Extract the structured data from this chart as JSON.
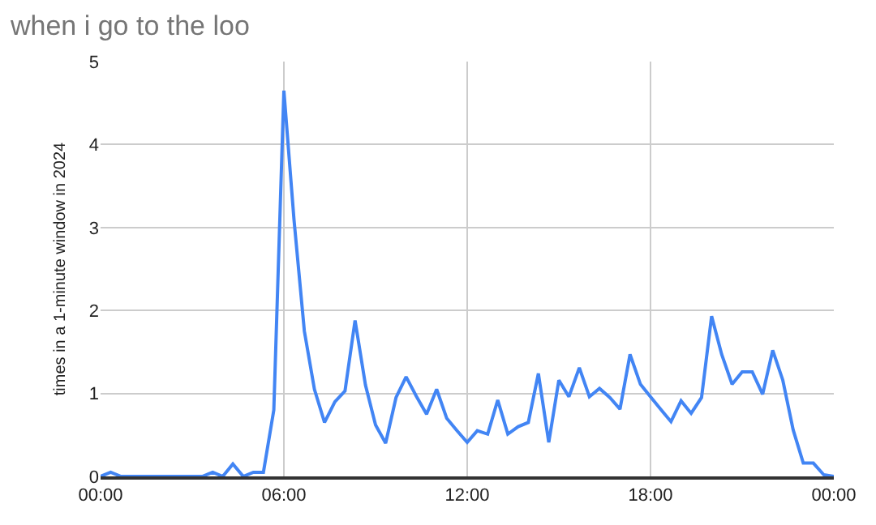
{
  "chart_data": {
    "type": "line",
    "title": "when i go to the loo",
    "ylabel": "times in a 1-minute window in 2024",
    "x": [
      0,
      0.33,
      0.67,
      1,
      1.33,
      1.67,
      2,
      2.33,
      2.67,
      3,
      3.33,
      3.67,
      4,
      4.33,
      4.67,
      5,
      5.33,
      5.67,
      6,
      6.33,
      6.67,
      7,
      7.33,
      7.67,
      8,
      8.33,
      8.67,
      9,
      9.33,
      9.67,
      10,
      10.33,
      10.67,
      11,
      11.33,
      11.67,
      12,
      12.33,
      12.67,
      13,
      13.33,
      13.67,
      14,
      14.33,
      14.67,
      15,
      15.33,
      15.67,
      16,
      16.33,
      16.67,
      17,
      17.33,
      17.67,
      18,
      18.33,
      18.67,
      19,
      19.33,
      19.67,
      20,
      20.33,
      20.67,
      21,
      21.33,
      21.67,
      22,
      22.33,
      22.67,
      23,
      23.33,
      23.67,
      24
    ],
    "series": [
      {
        "color": "#4285f4",
        "values": [
          0,
          0.05,
          0,
          0,
          0,
          0,
          0,
          0,
          0,
          0,
          0,
          0.05,
          0,
          0.15,
          0,
          0.05,
          0.05,
          0.8,
          4.65,
          3.1,
          1.75,
          1.05,
          0.65,
          0.9,
          1.03,
          1.88,
          1.1,
          0.62,
          0.4,
          0.95,
          1.2,
          0.97,
          0.75,
          1.05,
          0.7,
          0.55,
          0.41,
          0.55,
          0.51,
          0.92,
          0.51,
          0.6,
          0.65,
          1.24,
          0.41,
          1.16,
          0.96,
          1.31,
          0.96,
          1.06,
          0.95,
          0.81,
          1.47,
          1.11,
          0.96,
          0.81,
          0.66,
          0.91,
          0.76,
          0.95,
          1.93,
          1.47,
          1.11,
          1.26,
          1.26,
          0.99,
          1.52,
          1.16,
          0.56,
          0.16,
          0.16,
          0.02,
          0
        ]
      }
    ],
    "xlim": [
      0,
      24
    ],
    "xticks": [
      {
        "value": 0,
        "label": "00:00"
      },
      {
        "value": 6,
        "label": "06:00"
      },
      {
        "value": 12,
        "label": "12:00"
      },
      {
        "value": 18,
        "label": "18:00"
      },
      {
        "value": 24,
        "label": "00:00"
      }
    ],
    "ylim": [
      0,
      5
    ],
    "yticks": [
      0,
      1,
      2,
      3,
      4,
      5
    ],
    "grid": true,
    "marker": "none",
    "line_style": "solid"
  }
}
